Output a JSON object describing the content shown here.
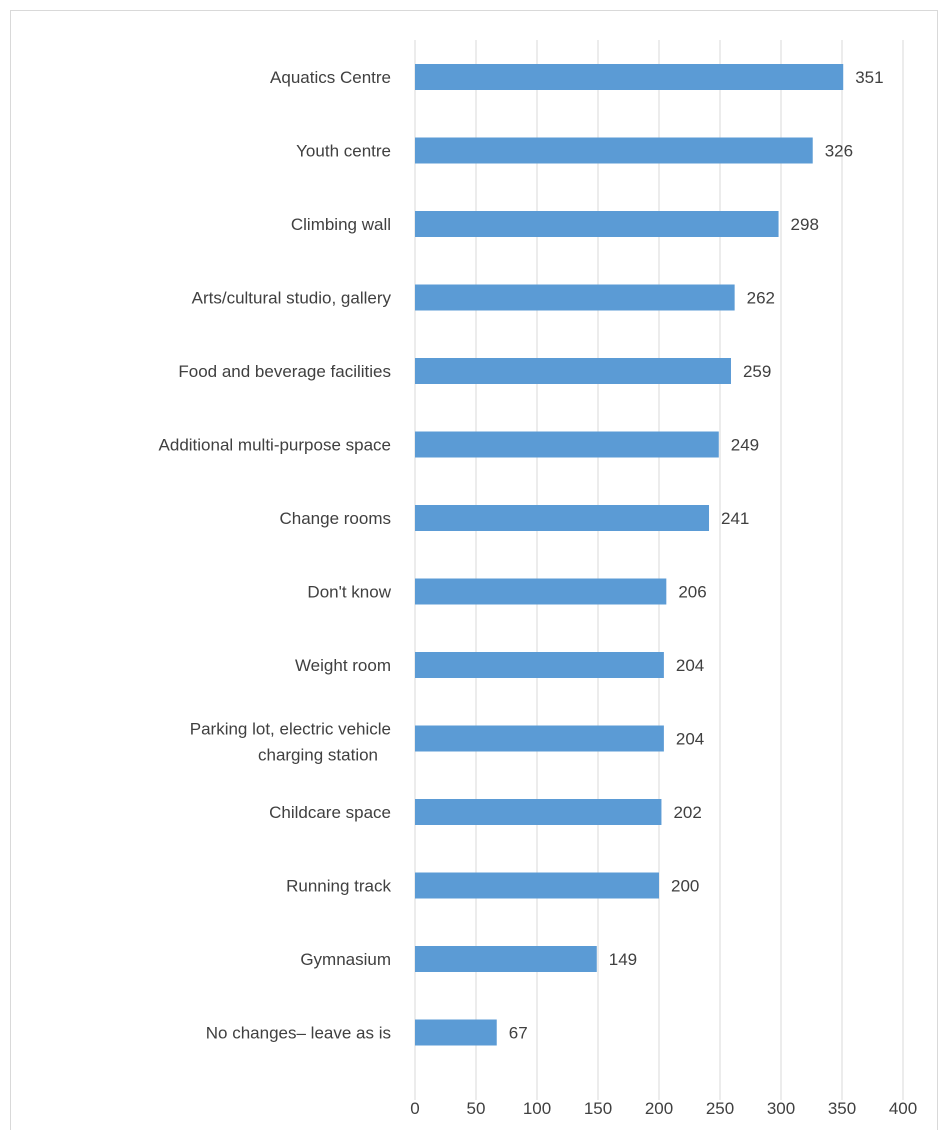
{
  "chart_data": {
    "type": "bar",
    "orientation": "horizontal",
    "categories": [
      "Aquatics Centre",
      "Youth centre",
      "Climbing wall",
      "Arts/cultural studio, gallery",
      "Food and beverage facilities",
      "Additional multi-purpose space",
      "Change rooms",
      "Don't know",
      "Weight room",
      "Parking lot, electric vehicle charging station",
      "Childcare space",
      "Running track",
      "Gymnasium",
      "No changes– leave as is"
    ],
    "values": [
      351,
      326,
      298,
      262,
      259,
      249,
      241,
      206,
      204,
      204,
      202,
      200,
      149,
      67
    ],
    "data_labels": [
      "351",
      "326",
      "298",
      "262",
      "259",
      "249",
      "241",
      "206",
      "204",
      "204",
      "202",
      "200",
      "149",
      "67"
    ],
    "xlim": [
      0,
      400
    ],
    "x_ticks": [
      "0",
      "50",
      "100",
      "150",
      "200",
      "250",
      "300",
      "350",
      "400"
    ],
    "title": "",
    "xlabel": "",
    "ylabel": "",
    "grid": true,
    "legend": "none",
    "bar_color": "#5b9bd5"
  }
}
